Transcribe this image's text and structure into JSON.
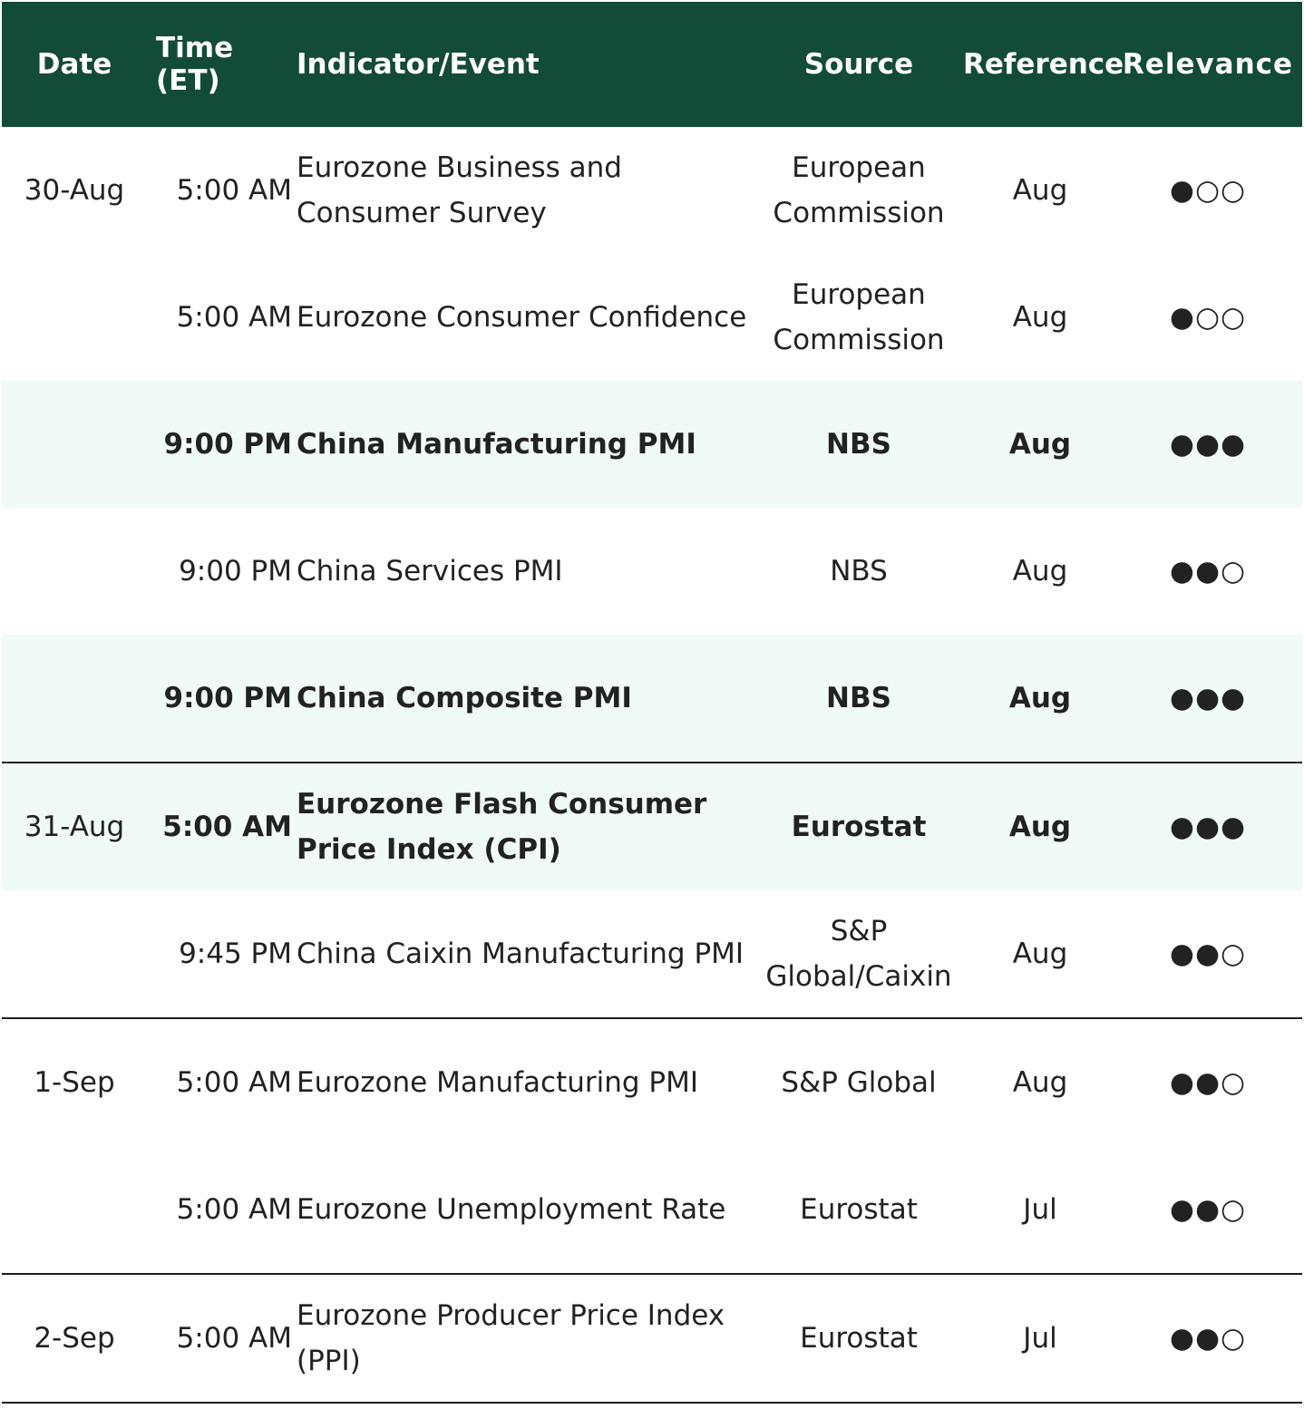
{
  "header": {
    "date": "Date",
    "time": "Time (ET)",
    "indicator": "Indicator/Event",
    "source": "Source",
    "reference": "Reference",
    "relevance": "Relevance"
  },
  "rows": [
    {
      "date": "30-Aug",
      "time": "5:00 AM",
      "indicator": "Eurozone Business and Consumer Survey",
      "source": "European Commission",
      "reference": "Aug",
      "relevance": "●○○"
    },
    {
      "date": "",
      "time": "5:00 AM",
      "indicator": "Eurozone Consumer Confidence",
      "source": "European Commission",
      "reference": "Aug",
      "relevance": "●○○"
    },
    {
      "date": "",
      "time": "9:00 PM",
      "indicator": "China Manufacturing PMI",
      "source": "NBS",
      "reference": "Aug",
      "relevance": "●●●"
    },
    {
      "date": "",
      "time": "9:00 PM",
      "indicator": "China Services PMI",
      "source": "NBS",
      "reference": "Aug",
      "relevance": "●●○"
    },
    {
      "date": "",
      "time": "9:00 PM",
      "indicator": "China Composite PMI",
      "source": "NBS",
      "reference": "Aug",
      "relevance": "●●●"
    },
    {
      "date": "31-Aug",
      "time": "5:00 AM",
      "indicator": "Eurozone Flash Consumer Price Index (CPI)",
      "source": "Eurostat",
      "reference": "Aug",
      "relevance": "●●●"
    },
    {
      "date": "",
      "time": "9:45 PM",
      "indicator": "China Caixin Manufacturing PMI",
      "source": "S&P Global/Caixin",
      "reference": "Aug",
      "relevance": "●●○"
    },
    {
      "date": "1-Sep",
      "time": "5:00 AM",
      "indicator": "Eurozone Manufacturing PMI",
      "source": "S&P Global",
      "reference": "Aug",
      "relevance": "●●○"
    },
    {
      "date": "",
      "time": "5:00 AM",
      "indicator": "Eurozone Unemployment Rate",
      "source": "Eurostat",
      "reference": "Jul",
      "relevance": "●●○"
    },
    {
      "date": "2-Sep",
      "time": "5:00 AM",
      "indicator": "Eurozone Producer Price Index (PPI)",
      "source": "Eurostat",
      "reference": "Jul",
      "relevance": "●●○"
    }
  ],
  "colors": {
    "header_bg": "#124b37",
    "highlight_row_bg": "#f0faf7",
    "rule": "#1c1c1c"
  }
}
